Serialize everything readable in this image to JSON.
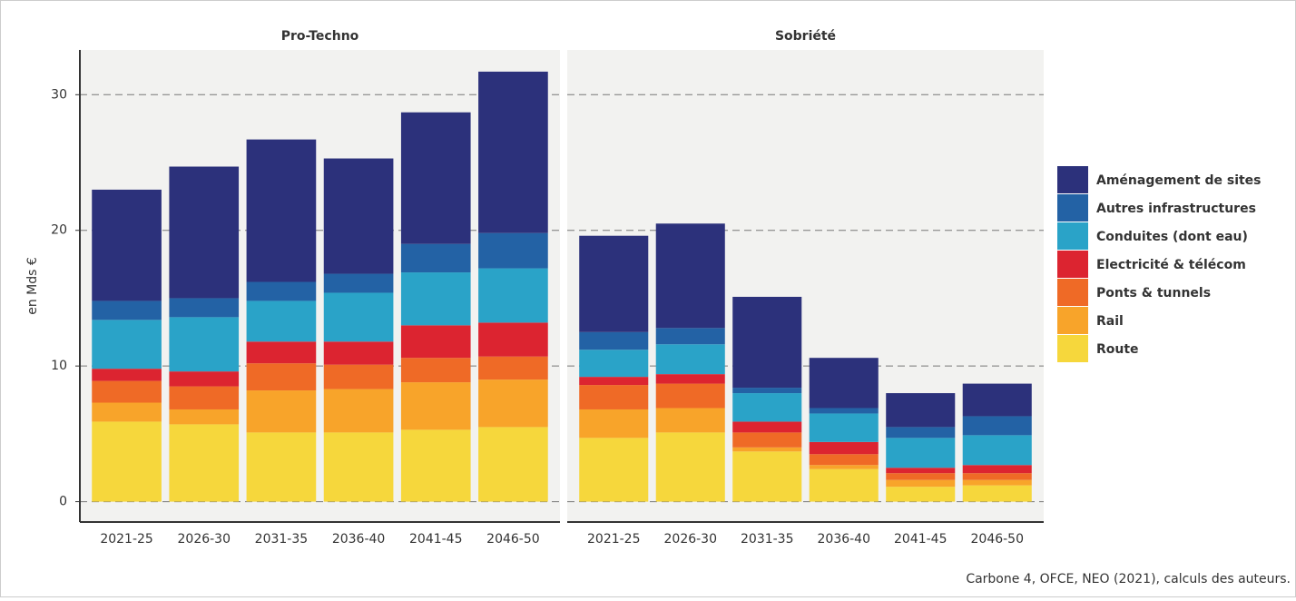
{
  "chart_data": [
    {
      "type": "bar",
      "stacked": true,
      "title": "Pro-Techno",
      "y_label": "en Mds €",
      "categories": [
        "2021-25",
        "2026-30",
        "2031-35",
        "2036-40",
        "2041-45",
        "2046-50"
      ],
      "ylim": [
        -1.5,
        33.3
      ],
      "yticks": [
        0,
        10,
        20,
        30
      ],
      "grid": true,
      "legend": "right",
      "series": [
        {
          "name": "Route",
          "color": "#f6d73c",
          "values": [
            5.9,
            5.7,
            5.1,
            5.1,
            5.3,
            5.5
          ]
        },
        {
          "name": "Rail",
          "color": "#f8a42a",
          "values": [
            1.4,
            1.1,
            3.1,
            3.2,
            3.5,
            3.5
          ]
        },
        {
          "name": "Ponts & tunnels",
          "color": "#ef6a26",
          "values": [
            1.6,
            1.7,
            2.0,
            1.8,
            1.8,
            1.7
          ]
        },
        {
          "name": "Electricité & télécom",
          "color": "#dc2430",
          "values": [
            0.9,
            1.1,
            1.6,
            1.7,
            2.4,
            2.5
          ]
        },
        {
          "name": "Conduites (dont eau)",
          "color": "#2aa3c8",
          "values": [
            3.6,
            4.0,
            3.0,
            3.6,
            3.9,
            4.0
          ]
        },
        {
          "name": "Autres infrastructures",
          "color": "#2362a5",
          "values": [
            1.4,
            1.4,
            1.4,
            1.4,
            2.1,
            2.6
          ]
        },
        {
          "name": "Aménagement de sites",
          "color": "#2c317b",
          "values": [
            8.2,
            9.7,
            10.5,
            8.5,
            9.7,
            11.9
          ]
        }
      ]
    },
    {
      "type": "bar",
      "stacked": true,
      "title": "Sobriété",
      "categories": [
        "2021-25",
        "2026-30",
        "2031-35",
        "2036-40",
        "2041-45",
        "2046-50"
      ],
      "ylim": [
        -1.5,
        33.3
      ],
      "yticks": [
        0,
        10,
        20,
        30
      ],
      "grid": true,
      "series": [
        {
          "color": "#f6d73c",
          "values": [
            4.7,
            5.1,
            3.7,
            2.4,
            1.1,
            1.2
          ]
        },
        {
          "color": "#f8a42a",
          "values": [
            2.1,
            1.8,
            0.3,
            0.3,
            0.5,
            0.4
          ]
        },
        {
          "color": "#ef6a26",
          "values": [
            1.8,
            1.8,
            1.1,
            0.8,
            0.5,
            0.5
          ]
        },
        {
          "color": "#dc2430",
          "values": [
            0.6,
            0.7,
            0.8,
            0.9,
            0.4,
            0.6
          ]
        },
        {
          "color": "#2aa3c8",
          "values": [
            2.0,
            2.2,
            2.1,
            2.1,
            2.2,
            2.2
          ]
        },
        {
          "color": "#2362a5",
          "values": [
            1.3,
            1.2,
            0.4,
            0.4,
            0.8,
            1.4
          ]
        },
        {
          "color": "#2c317b",
          "values": [
            7.1,
            7.7,
            6.7,
            3.7,
            2.5,
            2.4
          ]
        }
      ]
    }
  ],
  "source": "Carbone 4, OFCE, NEO (2021), calculs des auteurs."
}
